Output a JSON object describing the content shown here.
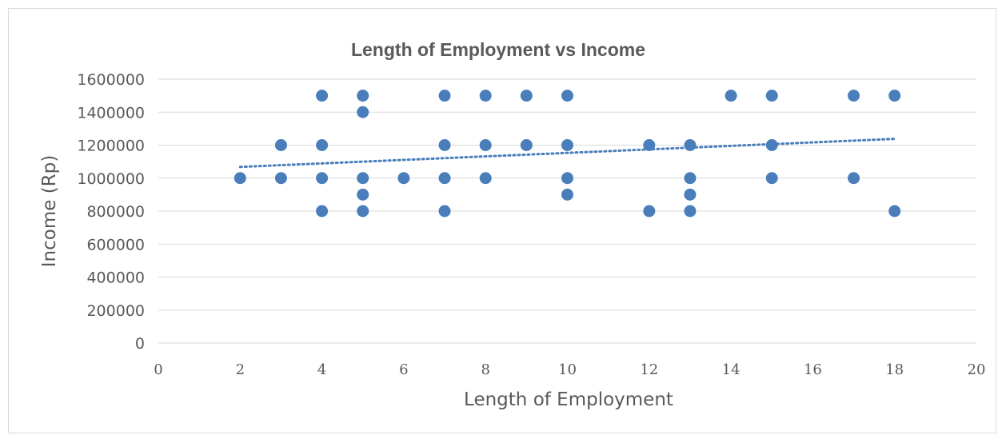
{
  "chart_data": {
    "type": "scatter",
    "title": "Length of Employment vs Income",
    "xlabel": "Length of Employment",
    "ylabel": "Income (Rp)",
    "xlim": [
      0,
      20
    ],
    "ylim": [
      0,
      1600000
    ],
    "x_ticks": [
      "0",
      "2",
      "4",
      "6",
      "8",
      "10",
      "12",
      "14",
      "16",
      "18",
      "20"
    ],
    "y_ticks": [
      "0",
      "200000",
      "400000",
      "600000",
      "800000",
      "1000000",
      "1200000",
      "1400000",
      "1600000"
    ],
    "grid": "horizontal",
    "legend": "none",
    "colors": {
      "marker": "#4a7ebb",
      "trendline": "#4a7ebb",
      "grid": "#d9d9d9",
      "text": "#595959"
    },
    "series": [
      {
        "points": [
          [
            2,
            1000000
          ],
          [
            3,
            1200000
          ],
          [
            3,
            1000000
          ],
          [
            4,
            1500000
          ],
          [
            4,
            1200000
          ],
          [
            4,
            1000000
          ],
          [
            4,
            800000
          ],
          [
            5,
            1500000
          ],
          [
            5,
            1400000
          ],
          [
            5,
            1000000
          ],
          [
            5,
            900000
          ],
          [
            5,
            800000
          ],
          [
            6,
            1000000
          ],
          [
            7,
            1500000
          ],
          [
            7,
            1200000
          ],
          [
            7,
            1000000
          ],
          [
            7,
            800000
          ],
          [
            8,
            1500000
          ],
          [
            8,
            1200000
          ],
          [
            8,
            1000000
          ],
          [
            9,
            1500000
          ],
          [
            9,
            1200000
          ],
          [
            10,
            1500000
          ],
          [
            10,
            1200000
          ],
          [
            10,
            1000000
          ],
          [
            10,
            900000
          ],
          [
            12,
            1200000
          ],
          [
            12,
            800000
          ],
          [
            13,
            1200000
          ],
          [
            13,
            1000000
          ],
          [
            13,
            900000
          ],
          [
            13,
            800000
          ],
          [
            14,
            1500000
          ],
          [
            15,
            1500000
          ],
          [
            15,
            1200000
          ],
          [
            15,
            1000000
          ],
          [
            17,
            1500000
          ],
          [
            17,
            1000000
          ],
          [
            18,
            1500000
          ],
          [
            18,
            800000
          ]
        ]
      }
    ],
    "trendline": {
      "type": "linear",
      "style": "dotted",
      "x": [
        2,
        18
      ],
      "y": [
        1068000,
        1238000
      ]
    }
  }
}
